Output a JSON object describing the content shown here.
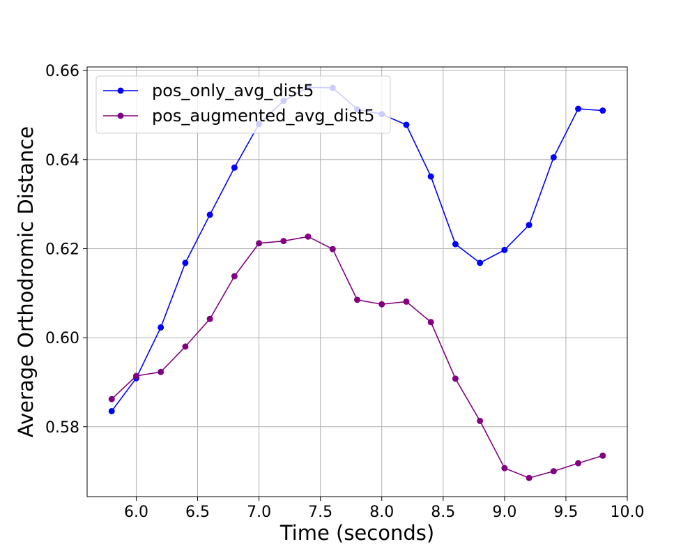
{
  "chart_data": {
    "type": "line",
    "title": "",
    "xlabel": "Time (seconds)",
    "ylabel": "Average Orthodromic Distance",
    "xlim": [
      5.6,
      10.0
    ],
    "ylim": [
      0.5643,
      0.6608
    ],
    "x_ticks": [
      "6.0",
      "6.5",
      "7.0",
      "7.5",
      "8.0",
      "8.5",
      "9.0",
      "9.5",
      "10.0"
    ],
    "x_tick_values": [
      6.0,
      6.5,
      7.0,
      7.5,
      8.0,
      8.5,
      9.0,
      9.5,
      10.0
    ],
    "y_ticks": [
      "0.58",
      "0.60",
      "0.62",
      "0.64",
      "0.66"
    ],
    "y_tick_values": [
      0.58,
      0.6,
      0.62,
      0.64,
      0.66
    ],
    "grid": true,
    "legend_position": "upper-left",
    "x": [
      5.8,
      6.0,
      6.2,
      6.4,
      6.6,
      6.8,
      7.0,
      7.2,
      7.4,
      7.6,
      7.8,
      8.0,
      8.2,
      8.4,
      8.6,
      8.8,
      9.0,
      9.2,
      9.4,
      9.6,
      9.8
    ],
    "series": [
      {
        "name": "pos_only_avg_dist5",
        "color": "#0000ff",
        "values": [
          0.5835,
          0.5909,
          0.6023,
          0.6168,
          0.6276,
          0.6382,
          0.648,
          0.6532,
          0.6562,
          0.6561,
          0.6513,
          0.6502,
          0.6478,
          0.6362,
          0.621,
          0.6168,
          0.6197,
          0.6253,
          0.6405,
          0.6514,
          0.651
        ]
      },
      {
        "name": "pos_augmented_avg_dist5",
        "color": "#800080",
        "values": [
          0.5862,
          0.5914,
          0.5923,
          0.598,
          0.6042,
          0.6138,
          0.6212,
          0.6217,
          0.6227,
          0.6199,
          0.6085,
          0.6075,
          0.6081,
          0.6035,
          0.5908,
          0.5813,
          0.5707,
          0.5685,
          0.57,
          0.5718,
          0.5735
        ]
      }
    ]
  }
}
